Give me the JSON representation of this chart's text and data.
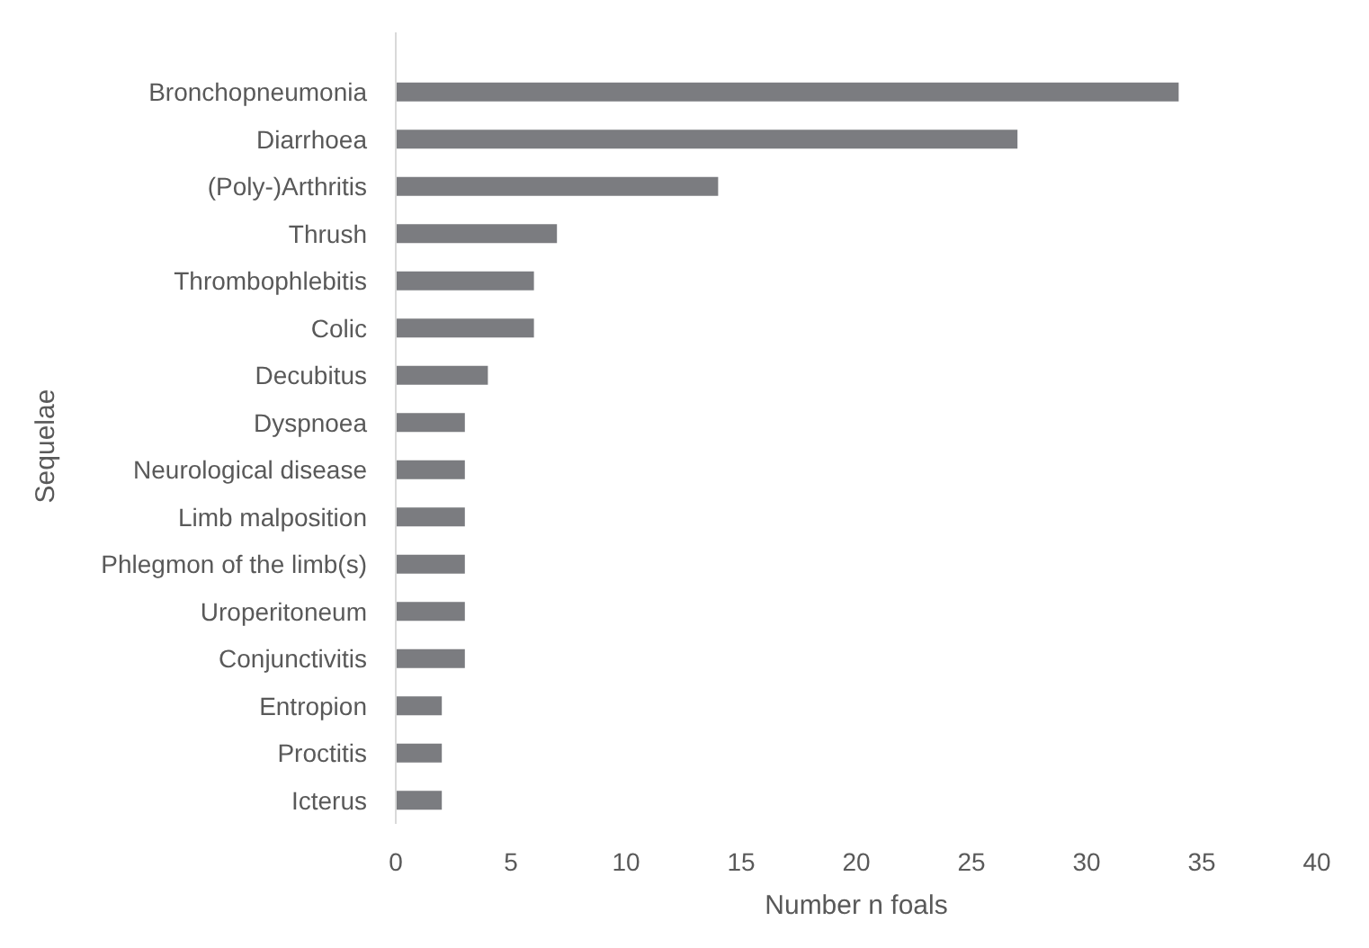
{
  "chart_data": {
    "type": "bar",
    "orientation": "horizontal",
    "xlabel": "Number n foals",
    "ylabel": "Sequelae",
    "categories": [
      "Bronchopneumonia",
      "Diarrhoea",
      "(Poly-)Arthritis",
      "Thrush",
      "Thrombophlebitis",
      "Colic",
      "Decubitus",
      "Dyspnoea",
      "Neurological disease",
      "Limb malposition",
      "Phlegmon of the limb(s)",
      "Uroperitoneum",
      "Conjunctivitis",
      "Entropion",
      "Proctitis",
      "Icterus"
    ],
    "values": [
      34,
      27,
      14,
      7,
      6,
      6,
      4,
      3,
      3,
      3,
      3,
      3,
      3,
      2,
      2,
      2
    ],
    "color": "#7b7c80",
    "xlim": [
      0,
      40
    ],
    "xticks": [
      0,
      5,
      10,
      15,
      20,
      25,
      30,
      35,
      40
    ],
    "grid": false
  }
}
